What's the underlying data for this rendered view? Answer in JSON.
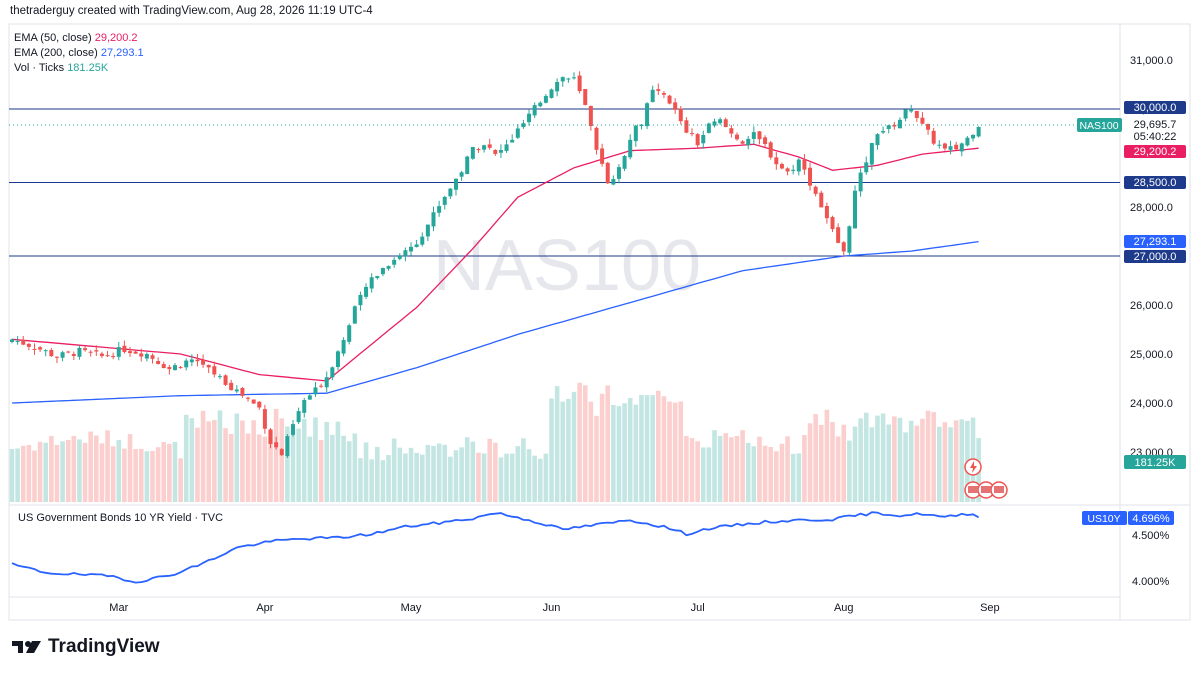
{
  "header": {
    "caption": "thetraderguy created with TradingView.com, Aug 28, 2026 11:19 UTC-4"
  },
  "legend": {
    "ema50": {
      "label": "EMA (50, close)",
      "value": "29,200.2",
      "color": "#e91e63"
    },
    "ema200": {
      "label": "EMA (200, close)",
      "value": "27,293.1",
      "color": "#2962ff"
    },
    "volume": {
      "label": "Vol · Ticks",
      "value": "181.25K",
      "color": "#26a69a"
    }
  },
  "watermark": "NAS100",
  "price_badges": {
    "symbol": "NAS100",
    "last": "29,695.7",
    "countdown": "05:40:22",
    "ema50": "29,200.2",
    "ema200": "27,293.1",
    "volume": "181.25K",
    "h30000": "30,000.0",
    "h28500": "28,500.0",
    "h27000": "27,000.0"
  },
  "lower_pane": {
    "title": "US Government Bonds 10 YR Yield · TVC",
    "symbol": "US10Y",
    "value": "4.696%",
    "ticks": [
      "4.500%",
      "4.000%"
    ]
  },
  "branding": {
    "logo_text": "TradingView"
  },
  "colors": {
    "up": "#26a69a",
    "down": "#ef5350",
    "ema50": "#e91e63",
    "ema200": "#2962ff",
    "hline": "#1e3a8a",
    "yield": "#2962ff"
  },
  "chart_data": [
    {
      "type": "candlestick",
      "symbol": "NAS100",
      "y_axis_ticks": [
        "31,000.0",
        "30,000.0",
        "28,000.0",
        "26,000.0",
        "25,000.0",
        "24,000.0",
        "23,000.0"
      ],
      "ylim": [
        22000,
        31500
      ],
      "x_axis_labels": [
        "Mar",
        "Apr",
        "May",
        "Jun",
        "Jul",
        "Aug",
        "Sep"
      ],
      "horizontal_levels": [
        30000,
        28500,
        27000
      ],
      "close_path": [
        [
          0,
          25300
        ],
        [
          4,
          25150
        ],
        [
          8,
          24950
        ],
        [
          12,
          25050
        ],
        [
          16,
          24950
        ],
        [
          20,
          25100
        ],
        [
          24,
          25000
        ],
        [
          28,
          24700
        ],
        [
          32,
          24900
        ],
        [
          36,
          24600
        ],
        [
          40,
          24250
        ],
        [
          44,
          23900
        ],
        [
          46,
          23200
        ],
        [
          48,
          22950
        ],
        [
          50,
          23550
        ],
        [
          52,
          24050
        ],
        [
          54,
          24250
        ],
        [
          56,
          24550
        ],
        [
          58,
          25050
        ],
        [
          60,
          25650
        ],
        [
          62,
          26150
        ],
        [
          64,
          26550
        ],
        [
          66,
          26750
        ],
        [
          68,
          26950
        ],
        [
          70,
          27100
        ],
        [
          72,
          27300
        ],
        [
          74,
          27650
        ],
        [
          76,
          28050
        ],
        [
          78,
          28400
        ],
        [
          80,
          28750
        ],
        [
          82,
          29200
        ],
        [
          84,
          29300
        ],
        [
          86,
          29050
        ],
        [
          88,
          29250
        ],
        [
          90,
          29550
        ],
        [
          92,
          29850
        ],
        [
          94,
          30150
        ],
        [
          96,
          30450
        ],
        [
          98,
          30650
        ],
        [
          100,
          30600
        ],
        [
          102,
          30050
        ],
        [
          104,
          29100
        ],
        [
          106,
          28550
        ],
        [
          108,
          28750
        ],
        [
          110,
          29450
        ],
        [
          112,
          29750
        ],
        [
          114,
          30350
        ],
        [
          116,
          30250
        ],
        [
          118,
          29950
        ],
        [
          120,
          29550
        ],
        [
          122,
          29300
        ],
        [
          124,
          29650
        ],
        [
          126,
          29750
        ],
        [
          128,
          29500
        ],
        [
          130,
          29350
        ],
        [
          132,
          29450
        ],
        [
          134,
          29250
        ],
        [
          136,
          28900
        ],
        [
          138,
          28700
        ],
        [
          140,
          28950
        ],
        [
          142,
          28500
        ],
        [
          144,
          28050
        ],
        [
          146,
          27500
        ],
        [
          148,
          27050
        ],
        [
          150,
          28300
        ],
        [
          152,
          28950
        ],
        [
          154,
          29550
        ],
        [
          156,
          29600
        ],
        [
          158,
          29800
        ],
        [
          160,
          30050
        ],
        [
          162,
          29650
        ],
        [
          164,
          29350
        ],
        [
          166,
          29150
        ],
        [
          168,
          29200
        ],
        [
          170,
          29400
        ],
        [
          172,
          29695.7
        ]
      ],
      "ema50_path": [
        [
          0,
          25300
        ],
        [
          30,
          25000
        ],
        [
          44,
          24580
        ],
        [
          56,
          24450
        ],
        [
          72,
          25950
        ],
        [
          82,
          27150
        ],
        [
          90,
          28200
        ],
        [
          100,
          28800
        ],
        [
          110,
          29150
        ],
        [
          122,
          29200
        ],
        [
          132,
          29280
        ],
        [
          140,
          29020
        ],
        [
          146,
          28750
        ],
        [
          154,
          28850
        ],
        [
          162,
          29080
        ],
        [
          172,
          29200.2
        ]
      ],
      "ema200_path": [
        [
          0,
          24000
        ],
        [
          30,
          24150
        ],
        [
          56,
          24200
        ],
        [
          72,
          24720
        ],
        [
          90,
          25400
        ],
        [
          110,
          26050
        ],
        [
          130,
          26700
        ],
        [
          148,
          27000
        ],
        [
          160,
          27100
        ],
        [
          172,
          27293.1
        ]
      ],
      "volume_last": "181.25K"
    },
    {
      "type": "line",
      "series": [
        {
          "name": "US10Y",
          "values_path": [
            [
              0,
              4.17
            ],
            [
              6,
              4.08
            ],
            [
              12,
              4.06
            ],
            [
              18,
              4.04
            ],
            [
              22,
              3.98
            ],
            [
              28,
              4.05
            ],
            [
              34,
              4.18
            ],
            [
              40,
              4.35
            ],
            [
              46,
              4.42
            ],
            [
              52,
              4.45
            ],
            [
              58,
              4.46
            ],
            [
              64,
              4.5
            ],
            [
              70,
              4.58
            ],
            [
              76,
              4.62
            ],
            [
              82,
              4.67
            ],
            [
              86,
              4.73
            ],
            [
              90,
              4.68
            ],
            [
              94,
              4.62
            ],
            [
              98,
              4.55
            ],
            [
              104,
              4.6
            ],
            [
              110,
              4.65
            ],
            [
              116,
              4.58
            ],
            [
              120,
              4.5
            ],
            [
              124,
              4.56
            ],
            [
              128,
              4.59
            ],
            [
              134,
              4.63
            ],
            [
              140,
              4.65
            ],
            [
              146,
              4.66
            ],
            [
              150,
              4.7
            ],
            [
              154,
              4.73
            ],
            [
              158,
              4.7
            ],
            [
              162,
              4.72
            ],
            [
              166,
              4.68
            ],
            [
              170,
              4.72
            ],
            [
              172,
              4.696
            ]
          ]
        }
      ],
      "y_ticks": [
        "4.500%",
        "4.000%"
      ],
      "last": "4.696%"
    }
  ]
}
